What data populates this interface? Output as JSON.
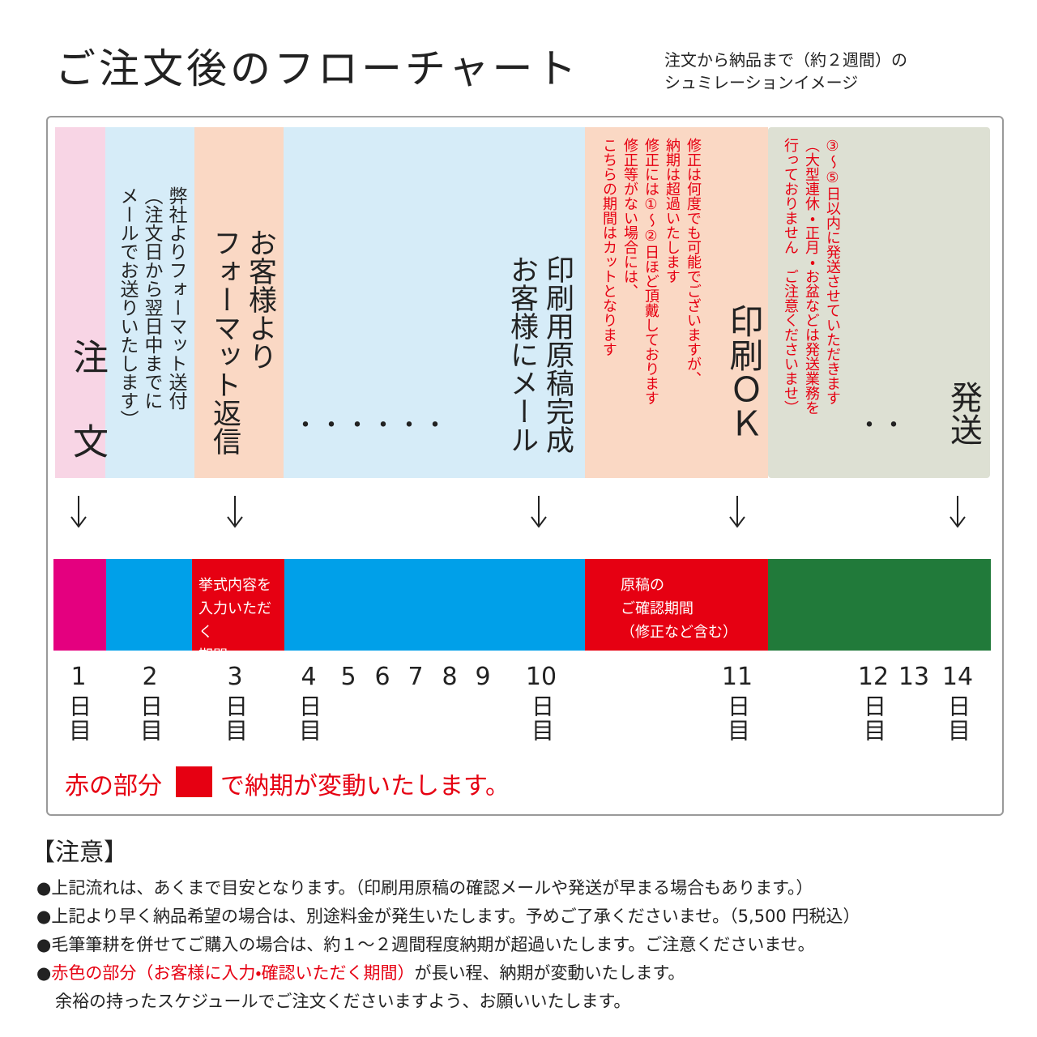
{
  "header": {
    "title": "ご注文後のフローチャート",
    "subtitle_lines": [
      "注文から納品まで（約２週間）の",
      "シュミレーションイメージ"
    ]
  },
  "steps": [
    {
      "main": "注　文"
    },
    {
      "lines": [
        "弊社よりフォーマット送付",
        "（注文日から翌日中までに",
        "メールでお送りいたします）"
      ]
    },
    {
      "lines": [
        "お客様より",
        "フォーマット返信"
      ]
    },
    {
      "dots": "・・・・・・",
      "lines": [
        "印刷用原稿完成",
        "お客様にメール"
      ]
    },
    {
      "notes": [
        "修正は何度でも可能でございますが、",
        "納期は超過いたします",
        "修正には①～②日ほど頂戴しております",
        "修正等がない場合には、",
        "こちらの期間はカットとなります"
      ],
      "main": "印刷ＯＫ"
    },
    {
      "notes": [
        "③～⑤日以内に発送させていただきます",
        "（大型連休・正月・お盆などは発送業務を",
        "行っておりません　ご注意くださいませ）"
      ],
      "dots": "・・",
      "main": "発送"
    }
  ],
  "timeline": {
    "segments": [
      {
        "color": "#e4007f"
      },
      {
        "color": "#00a0e9"
      },
      {
        "color": "#e60012",
        "label_lines": [
          "挙式内容を",
          "入力いただく",
          "期間"
        ]
      },
      {
        "color": "#00a0e9"
      },
      {
        "color": "#e60012",
        "label_lines": [
          "原稿の",
          "ご確認期間",
          "（修正など含む）"
        ]
      },
      {
        "color": "#217a3a"
      }
    ],
    "days": [
      {
        "number": 1,
        "suffix": "日目"
      },
      {
        "number": 2,
        "suffix": "日目"
      },
      {
        "number": 3,
        "suffix": "日目"
      },
      {
        "number": 4,
        "suffix": "日目"
      },
      {
        "number": 5
      },
      {
        "number": 6
      },
      {
        "number": 7
      },
      {
        "number": 8
      },
      {
        "number": 9
      },
      {
        "number": 10,
        "suffix": "日目"
      },
      {
        "number": 11,
        "suffix": "日目"
      },
      {
        "number": 12,
        "suffix": "日目"
      },
      {
        "number": 13
      },
      {
        "number": 14,
        "suffix": "日目"
      }
    ]
  },
  "legend": {
    "before": "赤の部分",
    "after": "で納期が変動いたします。",
    "color": "#e60012"
  },
  "notice": {
    "title": "【注意】",
    "items": [
      "●上記流れは、あくまで目安となります。（印刷用原稿の確認メールや発送が早まる場合もあります。）",
      "●上記より早く納品希望の場合は、別途料金が発生いたします。予めご了承くださいませ。（5,500 円税込）",
      "●毛筆筆耕を併せてご購入の場合は、約１～２週間程度納期が超過いたします。ご注意くださいませ。"
    ],
    "last_item": {
      "bullet": "●",
      "red": "赤色の部分（お客様に入力・確認いただく期間）",
      "rest": "が長い程、納期が変動いたします。",
      "continuation": "余裕の持ったスケジュールでご注文くださいますよう、お願いいたします。"
    }
  }
}
